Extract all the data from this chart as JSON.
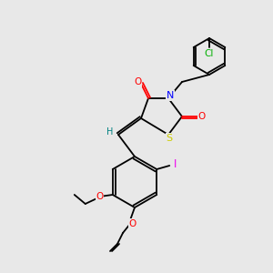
{
  "background_color": "#e8e8e8",
  "bond_color": "#000000",
  "atom_colors": {
    "N": "#0000ff",
    "S": "#cccc00",
    "O": "#ff0000",
    "Cl": "#00b000",
    "I": "#ee00ee",
    "H": "#008080",
    "C": "#000000"
  },
  "font_size": 7.5,
  "line_width": 1.3
}
